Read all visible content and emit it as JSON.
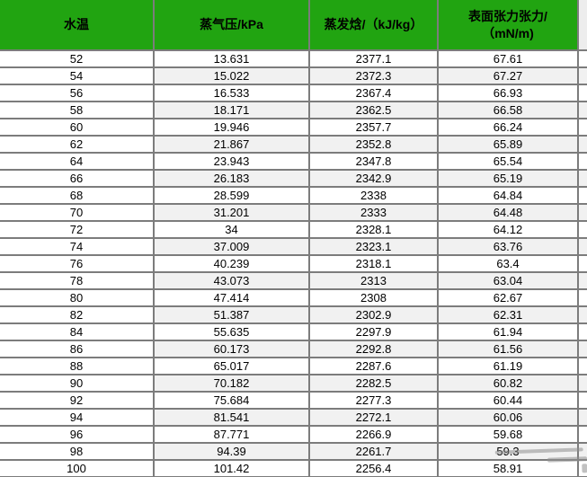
{
  "colors": {
    "header_bg": "#21a411",
    "header_text": "#000000",
    "row_bg": "#ffffff",
    "row_alt_bg": "#f1f1f1",
    "border": "#7c7c7c",
    "cell_text": "#000000"
  },
  "chart_data": {
    "type": "table",
    "title": "",
    "legend": [],
    "columns": [
      {
        "id": "water-temp",
        "label_lines": [
          "水温"
        ]
      },
      {
        "id": "vapor-pressure",
        "label_lines": [
          "蒸气压/kPa"
        ]
      },
      {
        "id": "vaporization-enthalpy",
        "label_lines": [
          "蒸发焓/（kJ/kg）"
        ]
      },
      {
        "id": "surface-tension",
        "label_lines": [
          "表面张力张力/",
          "（mN/m)"
        ]
      }
    ],
    "rows": [
      [
        "52",
        "13.631",
        "2377.1",
        "67.61"
      ],
      [
        "54",
        "15.022",
        "2372.3",
        "67.27"
      ],
      [
        "56",
        "16.533",
        "2367.4",
        "66.93"
      ],
      [
        "58",
        "18.171",
        "2362.5",
        "66.58"
      ],
      [
        "60",
        "19.946",
        "2357.7",
        "66.24"
      ],
      [
        "62",
        "21.867",
        "2352.8",
        "65.89"
      ],
      [
        "64",
        "23.943",
        "2347.8",
        "65.54"
      ],
      [
        "66",
        "26.183",
        "2342.9",
        "65.19"
      ],
      [
        "68",
        "28.599",
        "2338",
        "64.84"
      ],
      [
        "70",
        "31.201",
        "2333",
        "64.48"
      ],
      [
        "72",
        "34",
        "2328.1",
        "64.12"
      ],
      [
        "74",
        "37.009",
        "2323.1",
        "63.76"
      ],
      [
        "76",
        "40.239",
        "2318.1",
        "63.4"
      ],
      [
        "78",
        "43.073",
        "2313",
        "63.04"
      ],
      [
        "80",
        "47.414",
        "2308",
        "62.67"
      ],
      [
        "82",
        "51.387",
        "2302.9",
        "62.31"
      ],
      [
        "84",
        "55.635",
        "2297.9",
        "61.94"
      ],
      [
        "86",
        "60.173",
        "2292.8",
        "61.56"
      ],
      [
        "88",
        "65.017",
        "2287.6",
        "61.19"
      ],
      [
        "90",
        "70.182",
        "2282.5",
        "60.82"
      ],
      [
        "92",
        "75.684",
        "2277.3",
        "60.44"
      ],
      [
        "94",
        "81.541",
        "2272.1",
        "60.06"
      ],
      [
        "96",
        "87.771",
        "2266.9",
        "59.68"
      ],
      [
        "98",
        "94.39",
        "2261.7",
        "59.3"
      ],
      [
        "100",
        "101.42",
        "2256.4",
        "58.91"
      ]
    ]
  }
}
